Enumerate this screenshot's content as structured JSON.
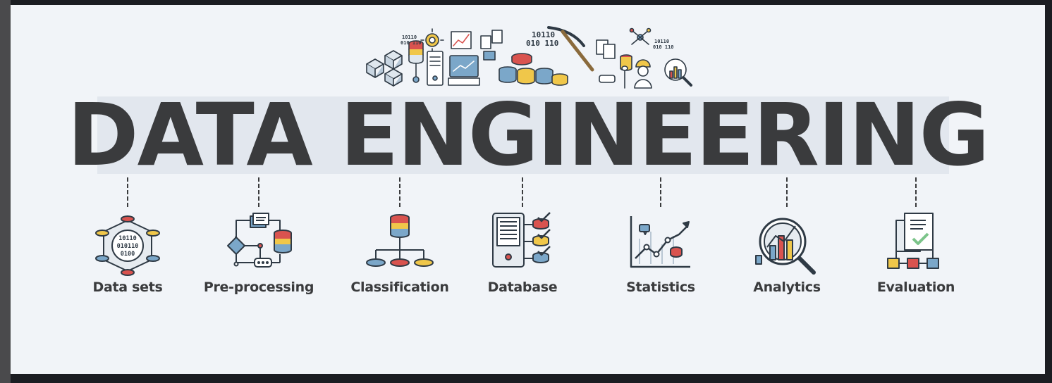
{
  "banner": {
    "title": "DATA ENGINEERING",
    "colors": {
      "background": "#f1f4f8",
      "title": "#3a3b3d",
      "red": "#d9534f",
      "yellow": "#f0c74a",
      "blue": "#7ba7c9",
      "green": "#7cc48a",
      "outline": "#2f3a45"
    }
  },
  "hero": {
    "icons": [
      "network-cubes-icon",
      "database-stack-icon",
      "gear-icon",
      "binary-code-icon",
      "server-icon",
      "line-chart-icon",
      "monitor-chart-icon",
      "coin-database-icon",
      "pickaxe-icon",
      "documents-icon",
      "molecule-icon",
      "worker-icon",
      "magnifier-chart-icon"
    ],
    "binary_texts": [
      "10110",
      "010 110",
      "10110 010 110",
      "10110 010110"
    ]
  },
  "items": [
    {
      "label": "Data sets",
      "icon": "dataset-network-icon",
      "binary": [
        "10110",
        "010110",
        "0100"
      ]
    },
    {
      "label": "Pre-processing",
      "icon": "flowchart-icon"
    },
    {
      "label": "Classification",
      "icon": "hierarchy-icon"
    },
    {
      "label": "Database",
      "icon": "server-checklist-icon"
    },
    {
      "label": "Statistics",
      "icon": "line-graph-icon"
    },
    {
      "label": "Analytics",
      "icon": "analytics-magnifier-icon"
    },
    {
      "label": "Evaluation",
      "icon": "evaluation-checklist-icon"
    }
  ]
}
